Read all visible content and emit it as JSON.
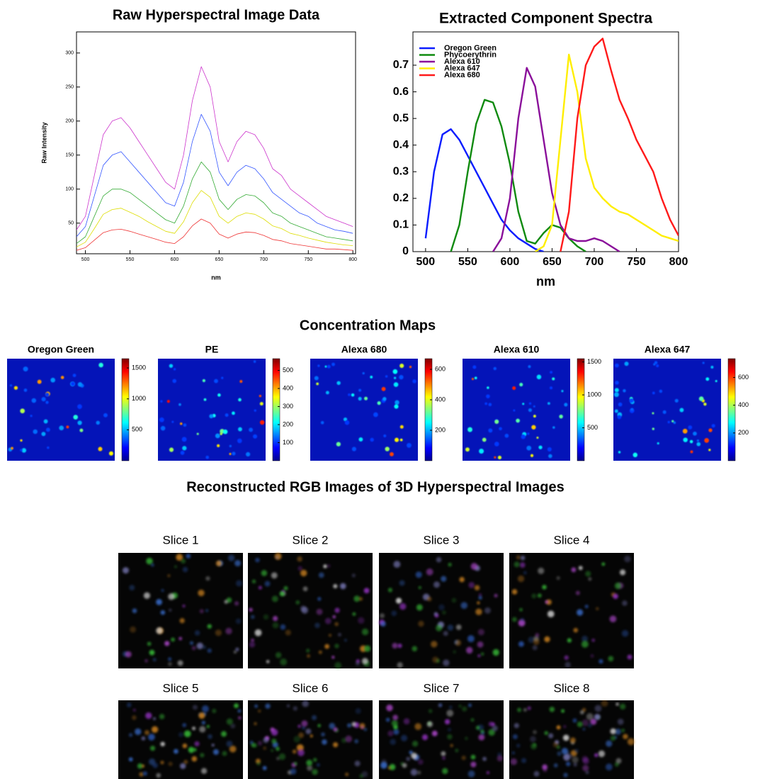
{
  "chart_data": [
    {
      "type": "line",
      "title": "Raw Hyperspectral Image Data",
      "xlabel": "nm",
      "ylabel": "Raw Intensity",
      "x": [
        490,
        500,
        510,
        520,
        530,
        540,
        550,
        560,
        570,
        580,
        590,
        600,
        610,
        620,
        630,
        640,
        650,
        660,
        670,
        680,
        690,
        700,
        710,
        720,
        730,
        740,
        750,
        760,
        770,
        780,
        790,
        800
      ],
      "series": [
        {
          "color": "#cc33cc",
          "values": [
            40,
            60,
            120,
            180,
            200,
            205,
            190,
            170,
            150,
            130,
            110,
            100,
            150,
            230,
            280,
            250,
            170,
            140,
            170,
            185,
            180,
            160,
            130,
            120,
            100,
            90,
            80,
            70,
            60,
            55,
            50,
            45
          ]
        },
        {
          "color": "#3355ff",
          "values": [
            30,
            45,
            90,
            135,
            150,
            155,
            140,
            125,
            110,
            95,
            80,
            75,
            110,
            170,
            210,
            185,
            125,
            105,
            125,
            135,
            130,
            115,
            95,
            85,
            75,
            65,
            60,
            50,
            45,
            40,
            38,
            35
          ]
        },
        {
          "color": "#33aa33",
          "values": [
            20,
            30,
            60,
            90,
            100,
            100,
            95,
            85,
            75,
            65,
            55,
            50,
            75,
            115,
            140,
            125,
            85,
            70,
            85,
            92,
            90,
            80,
            65,
            60,
            50,
            45,
            40,
            35,
            30,
            28,
            26,
            24
          ]
        },
        {
          "color": "#dddd00",
          "values": [
            15,
            22,
            42,
            63,
            70,
            72,
            66,
            60,
            52,
            45,
            38,
            35,
            52,
            80,
            98,
            88,
            60,
            50,
            60,
            65,
            63,
            56,
            46,
            42,
            35,
            32,
            28,
            25,
            22,
            20,
            18,
            17
          ]
        },
        {
          "color": "#ee3333",
          "values": [
            10,
            14,
            25,
            36,
            40,
            41,
            38,
            34,
            30,
            26,
            22,
            20,
            30,
            46,
            56,
            50,
            34,
            28,
            34,
            37,
            36,
            32,
            26,
            24,
            20,
            18,
            16,
            14,
            12,
            12,
            11,
            10
          ]
        }
      ],
      "xlim": [
        490,
        803
      ],
      "ylim": [
        5,
        331
      ],
      "xticks": [
        500,
        550,
        600,
        650,
        700,
        750,
        800
      ],
      "yticks": [
        50,
        100,
        150,
        200,
        250,
        300
      ]
    },
    {
      "type": "line",
      "title": "Extracted Component Spectra",
      "xlabel": "nm",
      "x": [
        490,
        500,
        510,
        520,
        530,
        540,
        550,
        560,
        570,
        580,
        590,
        600,
        610,
        620,
        630,
        640,
        650,
        660,
        670,
        680,
        690,
        700,
        710,
        720,
        730,
        740,
        750,
        760,
        770,
        780,
        790,
        800
      ],
      "series": [
        {
          "name": "Oregon Green",
          "color": "#0a1cff",
          "values": [
            null,
            0.05,
            0.3,
            0.44,
            0.46,
            0.42,
            0.36,
            0.3,
            0.24,
            0.18,
            0.12,
            0.08,
            0.05,
            0.03,
            0.01,
            0,
            null,
            null,
            null,
            null,
            null,
            null,
            null,
            null,
            null,
            null,
            null,
            null,
            null,
            null,
            null,
            null
          ]
        },
        {
          "name": "Phycoerythrin",
          "color": "#0f8a0f",
          "values": [
            null,
            null,
            null,
            null,
            0,
            0.1,
            0.3,
            0.48,
            0.57,
            0.56,
            0.47,
            0.33,
            0.15,
            0.04,
            0.03,
            0.07,
            0.1,
            0.09,
            0.05,
            0.02,
            0,
            null,
            null,
            null,
            null,
            null,
            null,
            null,
            null,
            null,
            null,
            null
          ]
        },
        {
          "name": "Alexa 610",
          "color": "#8a0f9a",
          "values": [
            null,
            null,
            null,
            null,
            null,
            null,
            null,
            null,
            null,
            0,
            0.05,
            0.2,
            0.5,
            0.69,
            0.62,
            0.42,
            0.22,
            0.1,
            0.05,
            0.04,
            0.04,
            0.05,
            0.04,
            0.02,
            0,
            null,
            null,
            null,
            null,
            null,
            null,
            null
          ]
        },
        {
          "name": "Alexa 647",
          "color": "#ffee00",
          "values": [
            null,
            null,
            null,
            null,
            null,
            null,
            null,
            null,
            null,
            null,
            null,
            null,
            null,
            null,
            0,
            0.02,
            0.1,
            0.42,
            0.74,
            0.6,
            0.35,
            0.24,
            0.2,
            0.17,
            0.15,
            0.14,
            0.12,
            0.1,
            0.08,
            0.06,
            0.05,
            0.04
          ]
        },
        {
          "name": "Alexa 680",
          "color": "#ff1a1a",
          "values": [
            null,
            null,
            null,
            null,
            null,
            null,
            null,
            null,
            null,
            null,
            null,
            null,
            null,
            null,
            null,
            null,
            null,
            0,
            0.15,
            0.5,
            0.7,
            0.77,
            0.8,
            0.68,
            0.57,
            0.5,
            0.42,
            0.36,
            0.3,
            0.2,
            0.12,
            0.06
          ]
        }
      ],
      "xlim": [
        485,
        800
      ],
      "ylim": [
        0,
        0.825
      ],
      "xticks": [
        500,
        550,
        600,
        650,
        700,
        750,
        800
      ],
      "yticks": [
        0,
        0.1,
        0.2,
        0.3,
        0.4,
        0.5,
        0.6,
        0.7
      ],
      "legend": "upper left"
    }
  ],
  "concentration_maps": {
    "title": "Concentration Maps",
    "maps": [
      {
        "title": "Oregon Green",
        "clim": [
          0,
          1650
        ],
        "ticks": [
          500,
          1000,
          1500
        ]
      },
      {
        "title": "PE",
        "clim": [
          0,
          565
        ],
        "ticks": [
          100,
          200,
          300,
          400,
          500
        ]
      },
      {
        "title": "Alexa 680",
        "clim": [
          0,
          670
        ],
        "ticks": [
          200,
          400,
          600
        ]
      },
      {
        "title": "Alexa 610",
        "clim": [
          0,
          1550
        ],
        "ticks": [
          500,
          1000,
          1500
        ]
      },
      {
        "title": "Alexa 647",
        "clim": [
          0,
          735
        ],
        "ticks": [
          200,
          400,
          600
        ]
      }
    ]
  },
  "rgb_images": {
    "title": "Reconstructed RGB Images of 3D Hyperspectral Images",
    "slices": [
      "Slice 1",
      "Slice 2",
      "Slice 3",
      "Slice 4",
      "Slice 5",
      "Slice 6",
      "Slice 7",
      "Slice 8"
    ]
  }
}
